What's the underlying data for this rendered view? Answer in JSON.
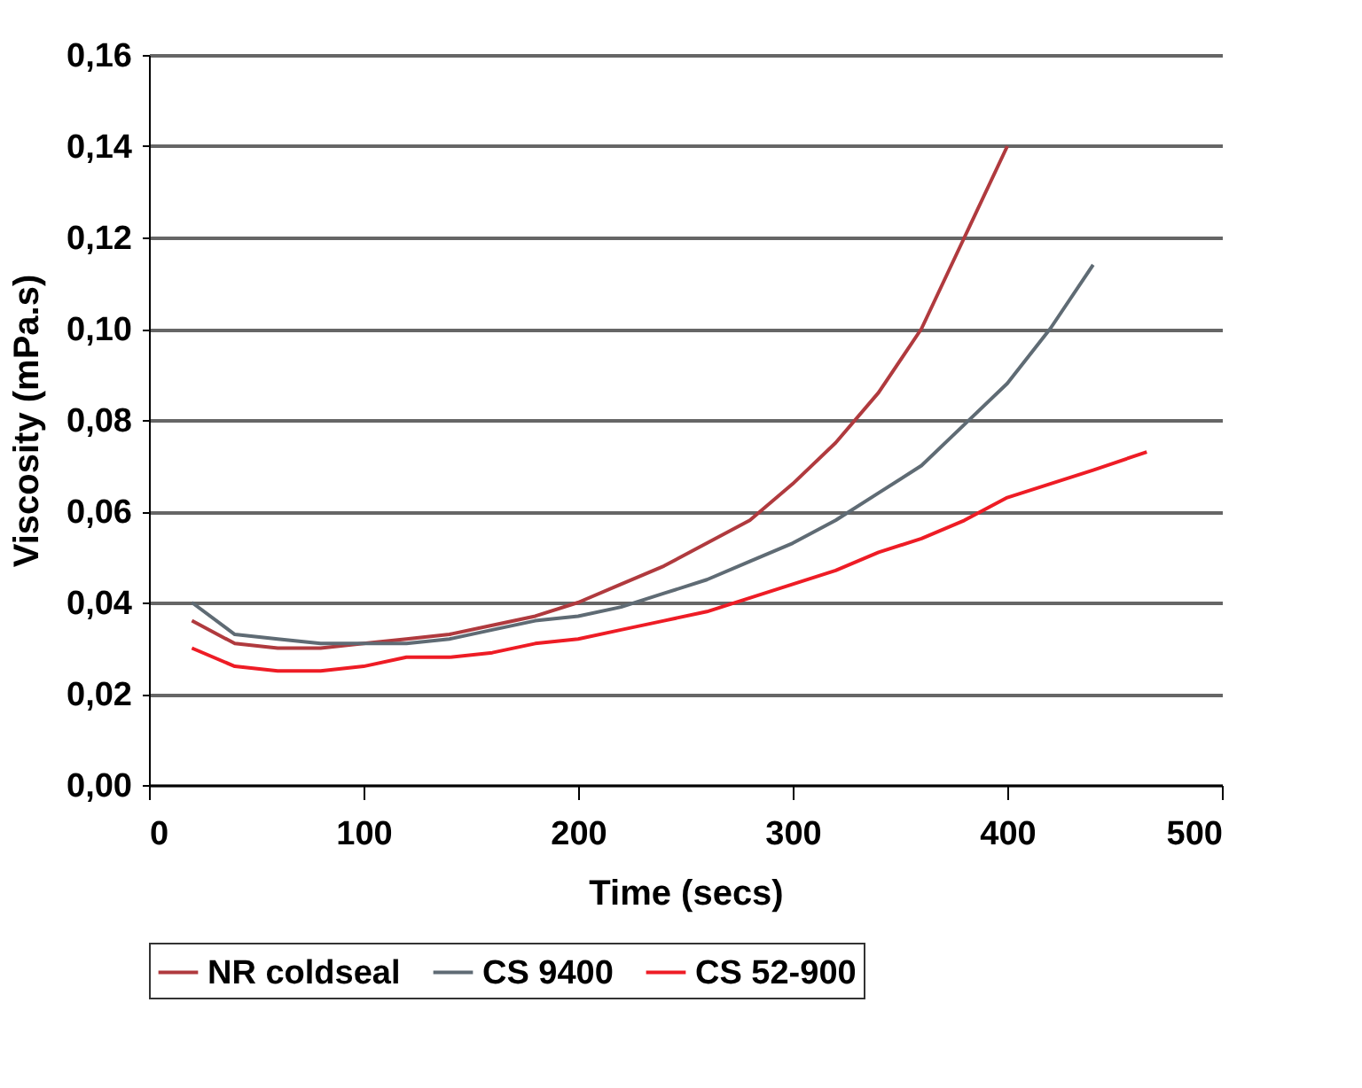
{
  "chart_data": {
    "type": "line",
    "xlabel": "Time (secs)",
    "ylabel": "Viscosity (mPa.s)",
    "x": [
      20,
      40,
      60,
      80,
      100,
      120,
      140,
      160,
      180,
      200,
      220,
      240,
      260,
      280,
      300,
      320,
      340,
      360,
      380,
      400,
      420,
      440,
      465
    ],
    "xlim": [
      0,
      500
    ],
    "xticks": [
      0,
      100,
      200,
      300,
      400,
      500
    ],
    "ylim": [
      0,
      0.16
    ],
    "yticks": [
      {
        "value": 0,
        "label": "0,00"
      },
      {
        "value": 0.02,
        "label": "0,02"
      },
      {
        "value": 0.04,
        "label": "0,04"
      },
      {
        "value": 0.06,
        "label": "0,06"
      },
      {
        "value": 0.08,
        "label": "0,08"
      },
      {
        "value": 0.1,
        "label": "0,10"
      },
      {
        "value": 0.12,
        "label": "0,12"
      },
      {
        "value": 0.14,
        "label": "0,14"
      },
      {
        "value": 0.16,
        "label": "0,16"
      }
    ],
    "grid": "y",
    "legend": "bottom",
    "marker": "none",
    "line_style": "solid",
    "series": [
      {
        "name": "NR coldseal",
        "color": "#b03a3e",
        "values": [
          0.036,
          0.031,
          0.03,
          0.03,
          0.031,
          0.032,
          0.033,
          0.035,
          0.037,
          0.04,
          0.044,
          0.048,
          0.053,
          0.058,
          0.066,
          0.075,
          0.086,
          0.1,
          0.12,
          0.14,
          null,
          null,
          null
        ]
      },
      {
        "name": "CS 9400",
        "color": "#5f6b74",
        "values": [
          0.04,
          0.033,
          0.032,
          0.031,
          0.031,
          0.031,
          0.032,
          0.034,
          0.036,
          0.037,
          0.039,
          0.042,
          0.045,
          0.049,
          0.053,
          0.058,
          0.064,
          0.07,
          0.079,
          0.088,
          0.1,
          0.114,
          null
        ]
      },
      {
        "name": "CS 52-900",
        "color": "#ee1c25",
        "values": [
          0.03,
          0.026,
          0.025,
          0.025,
          0.026,
          0.028,
          0.028,
          0.029,
          0.031,
          0.032,
          0.034,
          0.036,
          0.038,
          0.041,
          0.044,
          0.047,
          0.051,
          0.054,
          0.058,
          0.063,
          0.066,
          0.069,
          0.073
        ]
      }
    ]
  }
}
